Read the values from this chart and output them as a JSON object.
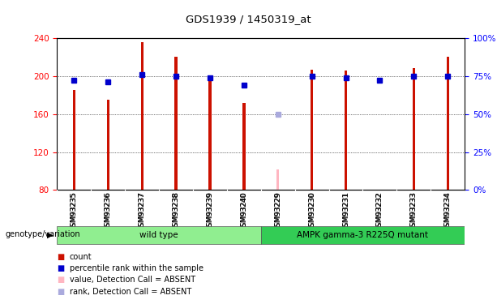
{
  "title": "GDS1939 / 1450319_at",
  "samples": [
    "GSM93235",
    "GSM93236",
    "GSM93237",
    "GSM93238",
    "GSM93239",
    "GSM93240",
    "GSM93229",
    "GSM93230",
    "GSM93231",
    "GSM93232",
    "GSM93233",
    "GSM93234"
  ],
  "count_values": [
    185,
    175,
    236,
    220,
    200,
    172,
    null,
    207,
    206,
    null,
    208,
    220
  ],
  "rank_values": [
    72,
    71,
    76,
    75,
    74,
    69,
    null,
    75,
    74,
    72,
    75,
    75
  ],
  "absent_count": [
    null,
    null,
    null,
    null,
    null,
    null,
    102,
    null,
    null,
    null,
    null,
    null
  ],
  "absent_rank": [
    null,
    null,
    null,
    null,
    null,
    null,
    50,
    null,
    null,
    null,
    null,
    null
  ],
  "ylim_left": [
    80,
    240
  ],
  "ylim_right": [
    0,
    100
  ],
  "yticks_left": [
    80,
    120,
    160,
    200,
    240
  ],
  "yticks_right": [
    0,
    25,
    50,
    75,
    100
  ],
  "yticklabels_right": [
    "0%",
    "25%",
    "50%",
    "75%",
    "100%"
  ],
  "groups": [
    {
      "label": "wild type",
      "start": 0,
      "end": 6,
      "color": "#90EE90"
    },
    {
      "label": "AMPK gamma-3 R225Q mutant",
      "start": 6,
      "end": 12,
      "color": "#33CC55"
    }
  ],
  "group_row_label": "genotype/variation",
  "bar_color_count": "#CC1100",
  "bar_color_rank": "#0000CC",
  "bar_color_absent_count": "#FFB6C1",
  "bar_color_absent_rank": "#AAAADD",
  "bg_color": "#FFFFFF",
  "plot_bg": "#FFFFFF",
  "legend_items": [
    {
      "color": "#CC1100",
      "label": "count"
    },
    {
      "color": "#0000CC",
      "label": "percentile rank within the sample"
    },
    {
      "color": "#FFB6C1",
      "label": "value, Detection Call = ABSENT"
    },
    {
      "color": "#AAAADD",
      "label": "rank, Detection Call = ABSENT"
    }
  ]
}
